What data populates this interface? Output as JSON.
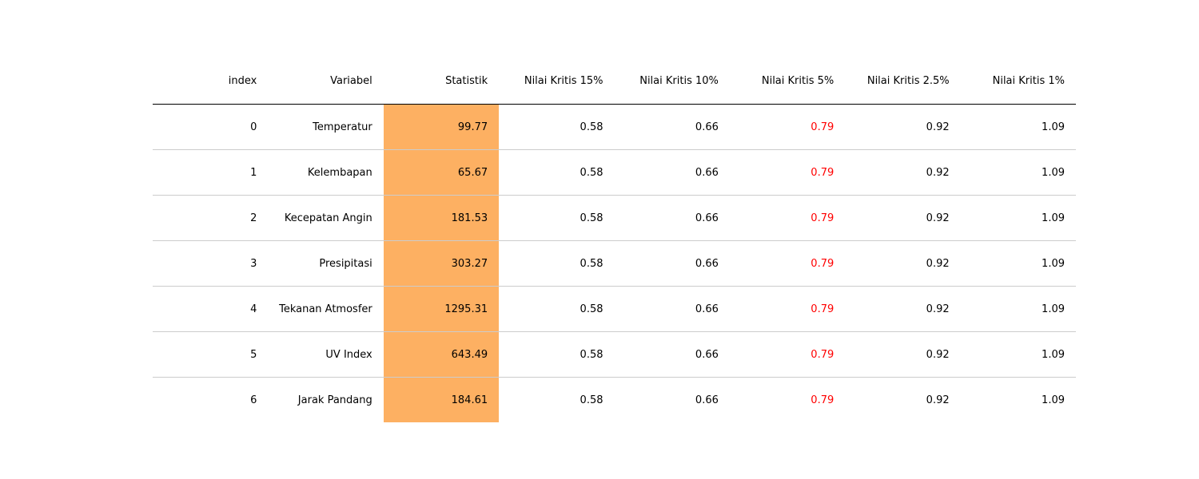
{
  "chart_data": {
    "type": "table",
    "columns": [
      "index",
      "Variabel",
      "Statistik",
      "Nilai Kritis 15%",
      "Nilai Kritis 10%",
      "Nilai Kritis 5%",
      "Nilai Kritis 2.5%",
      "Nilai Kritis 1%"
    ],
    "rows": [
      [
        "0",
        "Temperatur",
        "99.77",
        "0.58",
        "0.66",
        "0.79",
        "0.92",
        "1.09"
      ],
      [
        "1",
        "Kelembapan",
        "65.67",
        "0.58",
        "0.66",
        "0.79",
        "0.92",
        "1.09"
      ],
      [
        "2",
        "Kecepatan Angin",
        "181.53",
        "0.58",
        "0.66",
        "0.79",
        "0.92",
        "1.09"
      ],
      [
        "3",
        "Presipitasi",
        "303.27",
        "0.58",
        "0.66",
        "0.79",
        "0.92",
        "1.09"
      ],
      [
        "4",
        "Tekanan Atmosfer",
        "1295.31",
        "0.58",
        "0.66",
        "0.79",
        "0.92",
        "1.09"
      ],
      [
        "5",
        "UV Index",
        "643.49",
        "0.58",
        "0.66",
        "0.79",
        "0.92",
        "1.09"
      ],
      [
        "6",
        "Jarak Pandang",
        "184.61",
        "0.58",
        "0.66",
        "0.79",
        "0.92",
        "1.09"
      ]
    ],
    "highlight_column": "Statistik",
    "highlight_color": "#fdb062",
    "critical_column": "Nilai Kritis 5%",
    "critical_text_color": "#ff0000"
  }
}
